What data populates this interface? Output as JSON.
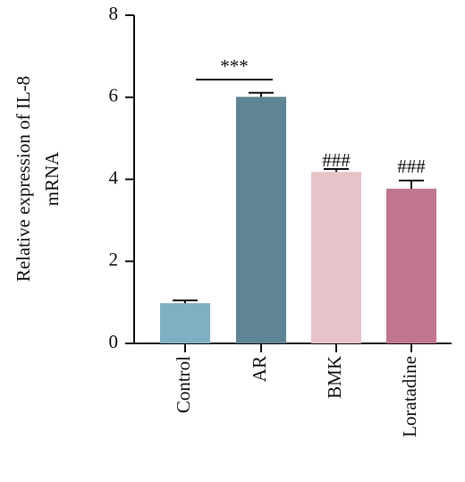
{
  "chart_data": {
    "type": "bar",
    "ylabel": [
      "Relative expression of IL-8",
      "mRNA"
    ],
    "categories": [
      "Control",
      "AR",
      "BMK",
      "Loratadine"
    ],
    "values": [
      0.98,
      6.01,
      4.18,
      3.77
    ],
    "errors": [
      0.07,
      0.1,
      0.07,
      0.2
    ],
    "colors": [
      "#7fb0c2",
      "#5f8494",
      "#e5c3c8",
      "#c0768e"
    ],
    "ylim": [
      0,
      8
    ],
    "yticks": [
      0,
      2,
      4,
      6,
      8
    ],
    "annotations": [
      {
        "text": "***"
      },
      {
        "text": "###"
      },
      {
        "text": "###"
      }
    ]
  }
}
